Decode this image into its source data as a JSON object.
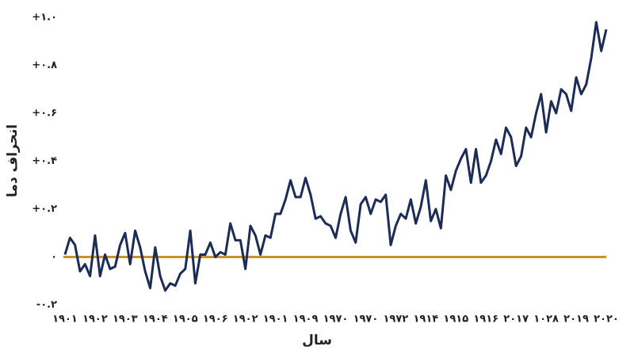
{
  "chart_data": {
    "type": "line",
    "x_label": "سال",
    "y_label": "انحراف دما",
    "color": "#1d2b57",
    "zero_line_color": "#c8922a",
    "categories": [
      "۱۹۰۱",
      null,
      null,
      null,
      null,
      null,
      "۱۹۰۲",
      null,
      null,
      null,
      null,
      null,
      "۱۹۰۳",
      null,
      null,
      null,
      null,
      null,
      "۱۹۰۴",
      null,
      null,
      null,
      null,
      null,
      "۱۹۰۵",
      null,
      null,
      null,
      null,
      null,
      "۱۹۰۶",
      null,
      null,
      null,
      null,
      null,
      "۱۹۰۲",
      null,
      null,
      null,
      null,
      null,
      "۱۹۰۱",
      null,
      null,
      null,
      null,
      null,
      "۱۹۰۹",
      null,
      null,
      null,
      null,
      null,
      "۱۹۷۰",
      null,
      null,
      null,
      null,
      null,
      "۱۹۷۰",
      null,
      null,
      null,
      null,
      null,
      "۱۹۷۲",
      null,
      null,
      null,
      null,
      null,
      "۱۹۱۴",
      null,
      null,
      null,
      null,
      null,
      "۱۹۱۵",
      null,
      null,
      null,
      null,
      null,
      "۱۹۱۶",
      null,
      null,
      null,
      null,
      null,
      "۲۰۱۷",
      null,
      null,
      null,
      null,
      null,
      "۱۰۲۸",
      null,
      null,
      null,
      null,
      null,
      "۲۰۱۹",
      null,
      null,
      null,
      null,
      null,
      "۲۰۲۰"
    ],
    "values": [
      0.01,
      0.08,
      0.05,
      -0.06,
      -0.03,
      -0.08,
      0.09,
      -0.08,
      0.01,
      -0.05,
      -0.04,
      0.05,
      0.1,
      -0.03,
      0.11,
      0.04,
      -0.06,
      -0.13,
      0.04,
      -0.08,
      -0.14,
      -0.11,
      -0.12,
      -0.07,
      -0.05,
      0.11,
      -0.11,
      0.01,
      0.01,
      0.06,
      0.0,
      0.02,
      0.01,
      0.14,
      0.07,
      0.07,
      -0.05,
      0.13,
      0.09,
      0.01,
      0.09,
      0.08,
      0.18,
      0.18,
      0.24,
      0.32,
      0.25,
      0.25,
      0.33,
      0.26,
      0.16,
      0.17,
      0.14,
      0.13,
      0.08,
      0.18,
      0.25,
      0.11,
      0.06,
      0.22,
      0.25,
      0.18,
      0.24,
      0.23,
      0.26,
      0.05,
      0.13,
      0.18,
      0.16,
      0.24,
      0.14,
      0.21,
      0.32,
      0.15,
      0.2,
      0.12,
      0.34,
      0.28,
      0.36,
      0.41,
      0.45,
      0.31,
      0.45,
      0.31,
      0.34,
      0.4,
      0.49,
      0.43,
      0.54,
      0.5,
      0.38,
      0.42,
      0.54,
      0.5,
      0.6,
      0.68,
      0.52,
      0.65,
      0.6,
      0.7,
      0.68,
      0.61,
      0.75,
      0.68,
      0.72,
      0.83,
      0.98,
      0.86,
      0.95
    ],
    "ylim": [
      -0.2,
      1.0
    ],
    "yticks": [
      {
        "value": -0.2,
        "label": "-۰.۲"
      },
      {
        "value": 0,
        "label": "۰"
      },
      {
        "value": 0.2,
        "label": "+۰.۲"
      },
      {
        "value": 0.4,
        "label": "+۰.۴"
      },
      {
        "value": 0.6,
        "label": "+۰.۶"
      },
      {
        "value": 0.8,
        "label": "+۰.۸"
      },
      {
        "value": 1.0,
        "label": "+۱.۰"
      }
    ]
  }
}
